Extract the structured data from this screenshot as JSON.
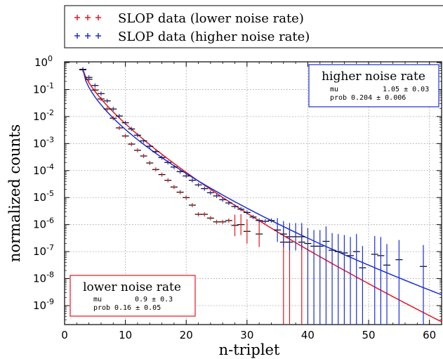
{
  "chart_data": {
    "type": "scatter",
    "xlabel": "n-triplet",
    "ylabel": "normalized counts",
    "xlim": [
      0,
      62
    ],
    "ylim_log10": [
      -9.7,
      0
    ],
    "xticks": [
      0,
      10,
      20,
      30,
      40,
      50,
      60
    ],
    "yticks": [
      {
        "exp": 0,
        "label": "10",
        "sup": "0"
      },
      {
        "exp": -1,
        "label": "10",
        "sup": "-1"
      },
      {
        "exp": -2,
        "label": "10",
        "sup": "-2"
      },
      {
        "exp": -3,
        "label": "10",
        "sup": "-3"
      },
      {
        "exp": -4,
        "label": "10",
        "sup": "-4"
      },
      {
        "exp": -5,
        "label": "10",
        "sup": "-5"
      },
      {
        "exp": -6,
        "label": "10",
        "sup": "-6"
      },
      {
        "exp": -7,
        "label": "10",
        "sup": "-7"
      },
      {
        "exp": -8,
        "label": "10",
        "sup": "-8"
      },
      {
        "exp": -9,
        "label": "10",
        "sup": "-9"
      }
    ],
    "grid": true,
    "legend_position": "top",
    "series": [
      {
        "name": "SLOP data (lower noise rate)",
        "color": "#e8141c",
        "points": [
          [
            3,
            -0.27
          ],
          [
            4,
            -0.62
          ],
          [
            5,
            -1.02
          ],
          [
            6,
            -1.35
          ],
          [
            7,
            -1.72
          ],
          [
            8,
            -2.06
          ],
          [
            9,
            -2.42
          ],
          [
            10,
            -2.72
          ],
          [
            11,
            -3.02
          ],
          [
            12,
            -3.25
          ],
          [
            13,
            -3.46
          ],
          [
            14,
            -3.72
          ],
          [
            15,
            -3.96
          ],
          [
            16,
            -4.15
          ],
          [
            17,
            -4.36
          ],
          [
            18,
            -4.61
          ],
          [
            19,
            -4.8
          ],
          [
            20,
            -5.0
          ],
          [
            21,
            -5.28
          ],
          [
            22,
            -5.62
          ],
          [
            23,
            -5.62
          ],
          [
            24,
            -5.76
          ],
          [
            25,
            -5.9
          ],
          [
            26,
            -5.9
          ],
          [
            27,
            -5.85
          ],
          [
            28,
            -6.03
          ],
          [
            29,
            -6.0
          ],
          [
            30,
            -6.25
          ],
          [
            32,
            -6.35
          ],
          [
            36,
            -6.65
          ],
          [
            37,
            -6.65
          ],
          [
            39,
            -6.65
          ]
        ],
        "fit": {
          "label": "lower noise rate",
          "mu": "0.9 ± 0.3",
          "prob": "0.16 ± 0.05"
        }
      },
      {
        "name": "SLOP data (higher noise rate)",
        "color": "#1a2ed8",
        "points": [
          [
            3,
            -0.25
          ],
          [
            4,
            -0.55
          ],
          [
            5,
            -0.85
          ],
          [
            6,
            -1.15
          ],
          [
            7,
            -1.42
          ],
          [
            8,
            -1.72
          ],
          [
            9,
            -1.98
          ],
          [
            10,
            -2.23
          ],
          [
            11,
            -2.46
          ],
          [
            12,
            -2.69
          ],
          [
            13,
            -2.9
          ],
          [
            14,
            -3.1
          ],
          [
            15,
            -3.3
          ],
          [
            16,
            -3.52
          ],
          [
            17,
            -3.7
          ],
          [
            18,
            -3.87
          ],
          [
            19,
            -4.04
          ],
          [
            20,
            -4.2
          ],
          [
            21,
            -4.36
          ],
          [
            22,
            -4.53
          ],
          [
            23,
            -4.67
          ],
          [
            24,
            -4.82
          ],
          [
            25,
            -4.94
          ],
          [
            26,
            -5.08
          ],
          [
            27,
            -5.2
          ],
          [
            28,
            -5.33
          ],
          [
            29,
            -5.43
          ],
          [
            30,
            -5.55
          ],
          [
            31,
            -5.72
          ],
          [
            32,
            -5.85
          ],
          [
            33,
            -5.88
          ],
          [
            34,
            -5.85
          ],
          [
            35,
            -6.2
          ],
          [
            36,
            -6.35
          ],
          [
            37,
            -6.45
          ],
          [
            38,
            -6.45
          ],
          [
            39,
            -6.45
          ],
          [
            40,
            -6.7
          ],
          [
            41,
            -6.8
          ],
          [
            42,
            -6.8
          ],
          [
            43,
            -6.62
          ],
          [
            44,
            -6.95
          ],
          [
            45,
            -7.0
          ],
          [
            46,
            -7.05
          ],
          [
            47,
            -7.15
          ],
          [
            48,
            -7.0
          ],
          [
            49,
            -7.6
          ],
          [
            51,
            -7.1
          ],
          [
            52,
            -7.15
          ],
          [
            53,
            -7.5
          ],
          [
            55,
            -7.3
          ],
          [
            59,
            -7.55
          ]
        ],
        "fit": {
          "label": "higher noise rate",
          "mu": "1.05 ± 0.03",
          "prob": "0.204 ± 0.006"
        }
      }
    ],
    "fit_curves": [
      {
        "series": "lower",
        "color": "#e8141c",
        "x": [
          3,
          62
        ],
        "log10_y": [
          -0.25,
          -9.6
        ]
      },
      {
        "series": "higher",
        "color": "#1a2ed8",
        "x": [
          3,
          62
        ],
        "log10_y": [
          -0.25,
          -8.6
        ]
      }
    ]
  },
  "ui": {
    "mu_label": "mu",
    "prob_label": "prob"
  }
}
